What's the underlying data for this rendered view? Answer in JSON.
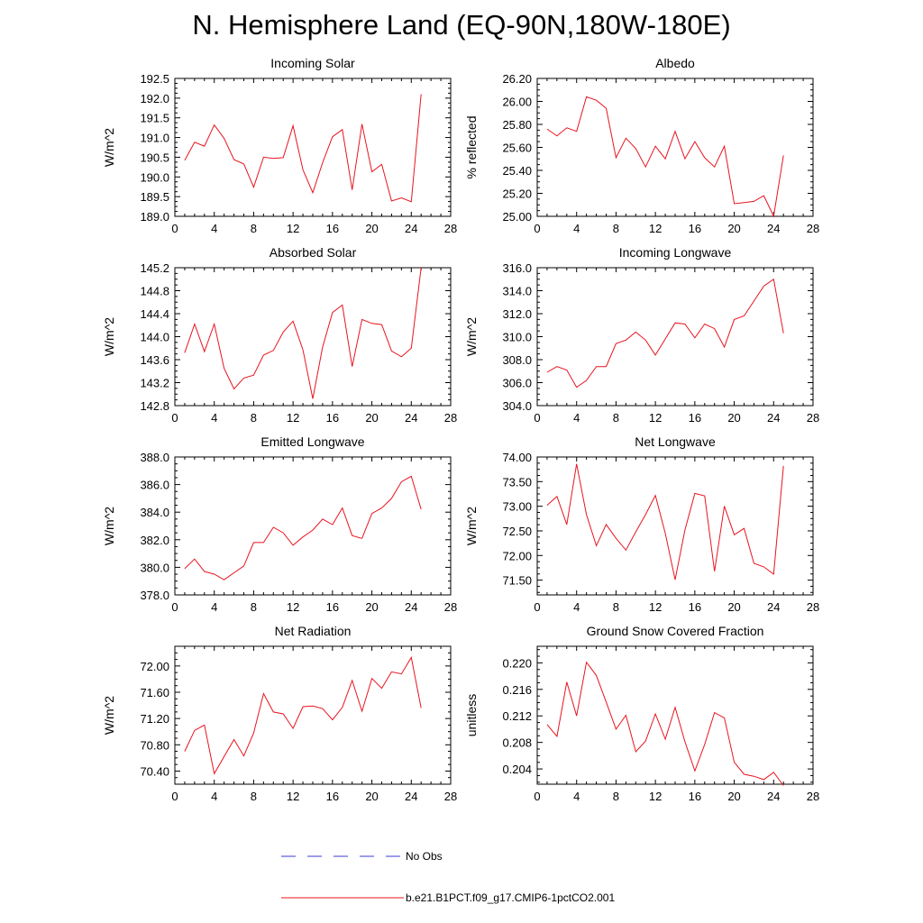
{
  "page": {
    "title": "N. Hemisphere Land (EQ-90N,180W-180E)"
  },
  "legend": {
    "entries": [
      {
        "label": "No Obs",
        "color": "#3a3ad8",
        "style": "dashed"
      },
      {
        "label": "b.e21.B1PCT.f09_g17.CMIP6-1pctCO2.001",
        "color": "#e8141e",
        "style": "solid"
      }
    ]
  },
  "chart_data": [
    {
      "type": "line",
      "title": "Incoming Solar",
      "xlabel": "",
      "ylabel": "W/m^2",
      "xlim": [
        0,
        28
      ],
      "ylim": [
        189.0,
        192.5
      ],
      "xticks": [
        0,
        4,
        8,
        12,
        16,
        20,
        24,
        28
      ],
      "yticks": [
        "189.0",
        "189.5",
        "190.0",
        "190.5",
        "191.0",
        "191.5",
        "192.0",
        "192.5"
      ],
      "x": [
        1,
        2,
        3,
        4,
        5,
        6,
        7,
        8,
        9,
        10,
        11,
        12,
        13,
        14,
        15,
        16,
        17,
        18,
        19,
        20,
        21,
        22,
        23,
        24,
        25
      ],
      "series": [
        {
          "color": "#e8141e",
          "values": [
            190.42,
            190.88,
            190.78,
            191.32,
            190.98,
            190.44,
            190.33,
            189.74,
            190.5,
            190.47,
            190.49,
            191.3,
            190.18,
            189.6,
            190.36,
            191.02,
            191.2,
            189.67,
            191.34,
            190.13,
            190.32,
            189.39,
            189.47,
            189.37,
            192.1
          ]
        }
      ]
    },
    {
      "type": "line",
      "title": "Albedo",
      "xlabel": "",
      "ylabel": "% reflected",
      "xlim": [
        0,
        28
      ],
      "ylim": [
        25.0,
        26.2
      ],
      "xticks": [
        0,
        4,
        8,
        12,
        16,
        20,
        24,
        28
      ],
      "yticks": [
        "25.00",
        "25.20",
        "25.40",
        "25.60",
        "25.80",
        "26.00",
        "26.20"
      ],
      "x": [
        1,
        2,
        3,
        4,
        5,
        6,
        7,
        8,
        9,
        10,
        11,
        12,
        13,
        14,
        15,
        16,
        17,
        18,
        19,
        20,
        21,
        22,
        23,
        24,
        25
      ],
      "series": [
        {
          "color": "#e8141e",
          "values": [
            25.76,
            25.7,
            25.77,
            25.74,
            26.04,
            26.01,
            25.94,
            25.51,
            25.68,
            25.59,
            25.43,
            25.61,
            25.5,
            25.74,
            25.5,
            25.65,
            25.51,
            25.43,
            25.61,
            25.11,
            25.12,
            25.13,
            25.18,
            25.0,
            25.53
          ]
        }
      ]
    },
    {
      "type": "line",
      "title": "Absorbed Solar",
      "xlabel": "",
      "ylabel": "W/m^2",
      "xlim": [
        0,
        28
      ],
      "ylim": [
        142.8,
        145.2
      ],
      "xticks": [
        0,
        4,
        8,
        12,
        16,
        20,
        24,
        28
      ],
      "yticks": [
        "142.8",
        "143.2",
        "143.6",
        "144.0",
        "144.4",
        "144.8",
        "145.2"
      ],
      "x": [
        1,
        2,
        3,
        4,
        5,
        6,
        7,
        8,
        9,
        10,
        11,
        12,
        13,
        14,
        15,
        16,
        17,
        18,
        19,
        20,
        21,
        22,
        23,
        24,
        25
      ],
      "series": [
        {
          "color": "#e8141e",
          "values": [
            143.72,
            144.22,
            143.74,
            144.22,
            143.45,
            143.09,
            143.28,
            143.33,
            143.68,
            143.76,
            144.08,
            144.27,
            143.77,
            142.92,
            143.82,
            144.42,
            144.55,
            143.48,
            144.3,
            144.23,
            144.21,
            143.75,
            143.65,
            143.8,
            145.2
          ]
        }
      ]
    },
    {
      "type": "line",
      "title": "Incoming Longwave",
      "xlabel": "",
      "ylabel": "W/m^2",
      "xlim": [
        0,
        28
      ],
      "ylim": [
        304.0,
        316.0
      ],
      "xticks": [
        0,
        4,
        8,
        12,
        16,
        20,
        24,
        28
      ],
      "yticks": [
        "304.0",
        "306.0",
        "308.0",
        "310.0",
        "312.0",
        "314.0",
        "316.0"
      ],
      "x": [
        1,
        2,
        3,
        4,
        5,
        6,
        7,
        8,
        9,
        10,
        11,
        12,
        13,
        14,
        15,
        16,
        17,
        18,
        19,
        20,
        21,
        22,
        23,
        24,
        25
      ],
      "series": [
        {
          "color": "#e8141e",
          "values": [
            306.9,
            307.4,
            307.1,
            305.6,
            306.2,
            307.4,
            307.4,
            309.4,
            309.7,
            310.4,
            309.7,
            308.4,
            309.8,
            311.2,
            311.1,
            309.9,
            311.1,
            310.7,
            309.1,
            311.5,
            311.8,
            313.1,
            314.4,
            315.0,
            310.3
          ]
        }
      ]
    },
    {
      "type": "line",
      "title": "Emitted Longwave",
      "xlabel": "",
      "ylabel": "W/m^2",
      "xlim": [
        0,
        28
      ],
      "ylim": [
        378.0,
        388.0
      ],
      "xticks": [
        0,
        4,
        8,
        12,
        16,
        20,
        24,
        28
      ],
      "yticks": [
        "378.0",
        "380.0",
        "382.0",
        "384.0",
        "386.0",
        "388.0"
      ],
      "x": [
        1,
        2,
        3,
        4,
        5,
        6,
        7,
        8,
        9,
        10,
        11,
        12,
        13,
        14,
        15,
        16,
        17,
        18,
        19,
        20,
        21,
        22,
        23,
        24,
        25
      ],
      "series": [
        {
          "color": "#e8141e",
          "values": [
            379.9,
            380.6,
            379.7,
            379.5,
            379.1,
            379.6,
            380.1,
            381.8,
            381.8,
            382.9,
            382.5,
            381.6,
            382.2,
            382.7,
            383.5,
            383.1,
            384.3,
            382.3,
            382.1,
            383.9,
            384.3,
            385.0,
            386.2,
            386.6,
            384.2
          ]
        }
      ]
    },
    {
      "type": "line",
      "title": "Net Longwave",
      "xlabel": "",
      "ylabel": "W/m^2",
      "xlim": [
        0,
        28
      ],
      "ylim": [
        71.2,
        74.0
      ],
      "xticks": [
        0,
        4,
        8,
        12,
        16,
        20,
        24,
        28
      ],
      "yticks": [
        "71.50",
        "72.00",
        "72.50",
        "73.00",
        "73.50",
        "74.00"
      ],
      "x": [
        1,
        2,
        3,
        4,
        5,
        6,
        7,
        8,
        9,
        10,
        11,
        12,
        13,
        14,
        15,
        16,
        17,
        18,
        19,
        20,
        21,
        22,
        23,
        24,
        25
      ],
      "series": [
        {
          "color": "#e8141e",
          "values": [
            73.02,
            73.2,
            72.63,
            73.86,
            72.83,
            72.2,
            72.63,
            72.35,
            72.11,
            72.48,
            72.83,
            73.22,
            72.45,
            71.51,
            72.52,
            73.26,
            73.21,
            71.68,
            73.0,
            72.42,
            72.55,
            71.84,
            71.77,
            71.62,
            73.82
          ]
        }
      ]
    },
    {
      "type": "line",
      "title": "Net Radiation",
      "xlabel": "",
      "ylabel": "W/m^2",
      "xlim": [
        0,
        28
      ],
      "ylim": [
        70.2,
        72.3
      ],
      "xticks": [
        0,
        4,
        8,
        12,
        16,
        20,
        24,
        28
      ],
      "yticks": [
        "70.40",
        "70.80",
        "71.20",
        "71.60",
        "72.00"
      ],
      "x": [
        1,
        2,
        3,
        4,
        5,
        6,
        7,
        8,
        9,
        10,
        11,
        12,
        13,
        14,
        15,
        16,
        17,
        18,
        19,
        20,
        21,
        22,
        23,
        24,
        25
      ],
      "series": [
        {
          "color": "#e8141e",
          "values": [
            70.7,
            71.02,
            71.1,
            70.36,
            70.62,
            70.88,
            70.63,
            70.98,
            71.58,
            71.3,
            71.27,
            71.05,
            71.38,
            71.39,
            71.35,
            71.18,
            71.37,
            71.78,
            71.31,
            71.81,
            71.66,
            71.91,
            71.88,
            72.13,
            71.36
          ]
        }
      ]
    },
    {
      "type": "line",
      "title": "Ground Snow Covered Fraction",
      "xlabel": "",
      "ylabel": "unitless",
      "xlim": [
        0,
        28
      ],
      "ylim": [
        0.2017,
        0.2225
      ],
      "xticks": [
        0,
        4,
        8,
        12,
        16,
        20,
        24,
        28
      ],
      "yticks": [
        "0.204",
        "0.208",
        "0.212",
        "0.216",
        "0.220"
      ],
      "x": [
        1,
        2,
        3,
        4,
        5,
        6,
        7,
        8,
        9,
        10,
        11,
        12,
        13,
        14,
        15,
        16,
        17,
        18,
        19,
        20,
        21,
        22,
        23,
        24,
        25
      ],
      "series": [
        {
          "color": "#e8141e",
          "values": [
            0.2107,
            0.2089,
            0.2171,
            0.212,
            0.2201,
            0.2181,
            0.2141,
            0.21,
            0.2121,
            0.2066,
            0.2082,
            0.2123,
            0.2085,
            0.2133,
            0.2081,
            0.2037,
            0.2077,
            0.2125,
            0.2117,
            0.205,
            0.2032,
            0.2029,
            0.2024,
            0.2035,
            0.2015
          ]
        }
      ]
    }
  ]
}
